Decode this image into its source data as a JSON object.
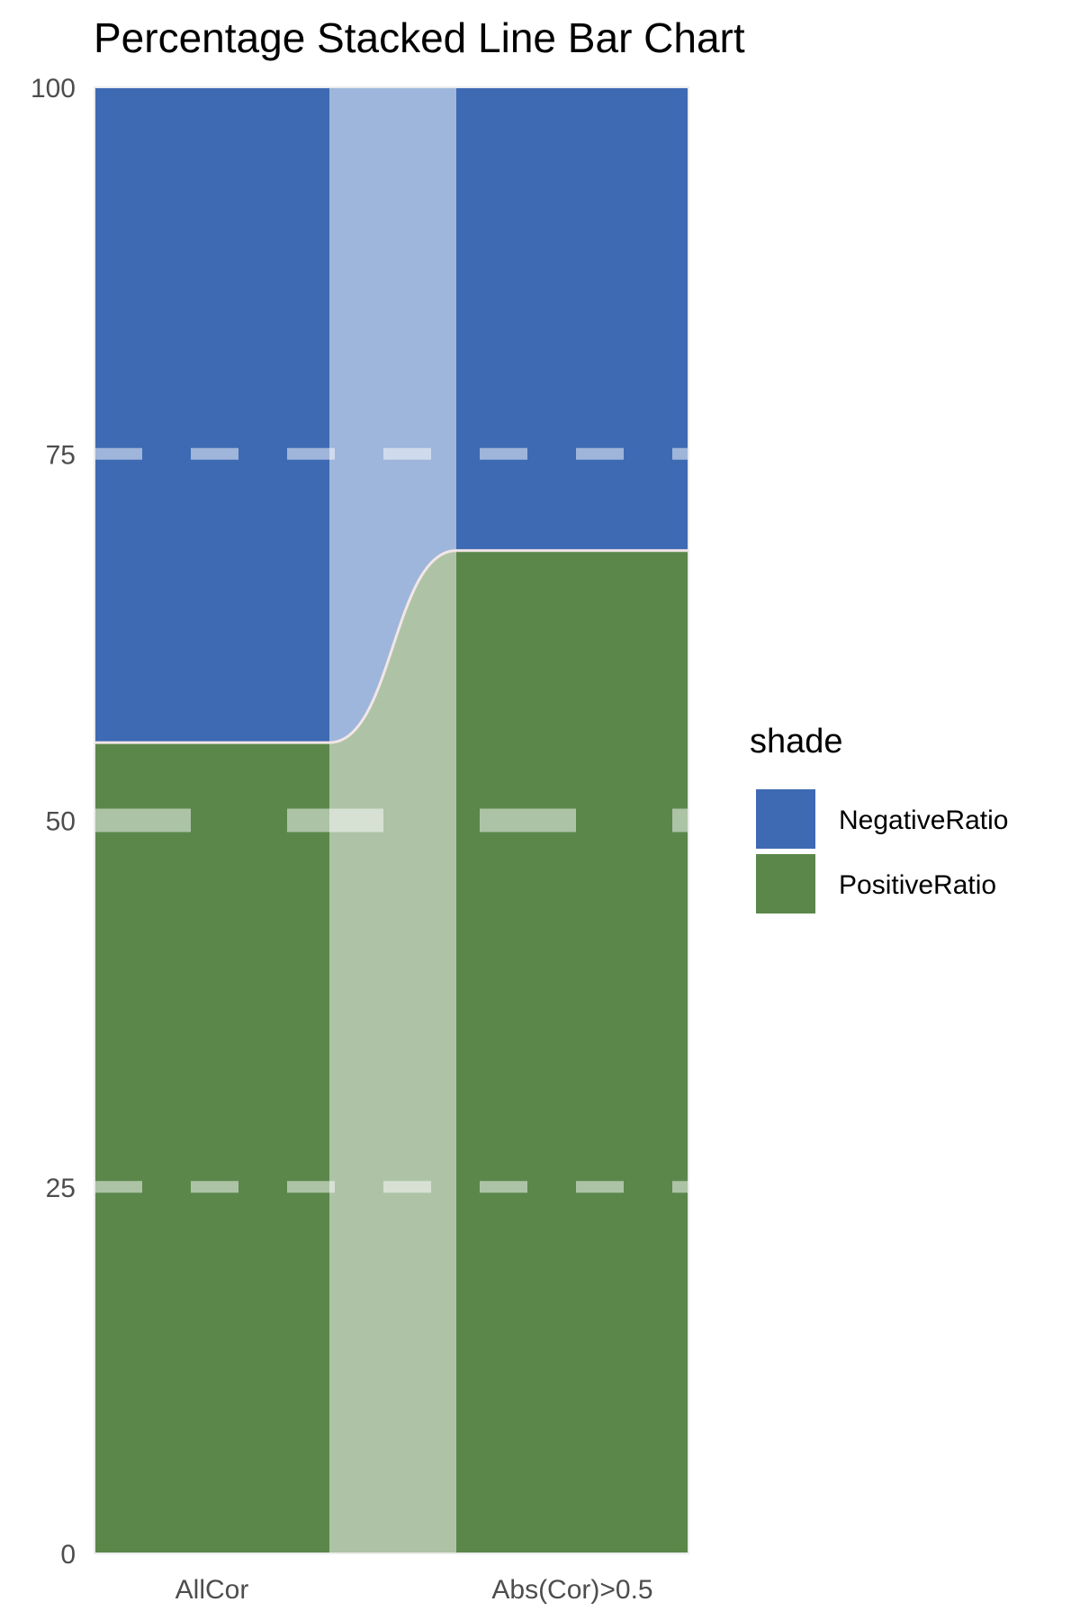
{
  "chart_data": {
    "type": "bar",
    "title": "Percentage Stacked Line Bar Chart",
    "xlabel": "",
    "ylabel": "",
    "categories": [
      "AllCor",
      "Abs(Cor)>0.5"
    ],
    "series": [
      {
        "name": "PositiveRatio",
        "values": [
          55.3,
          68.4
        ],
        "color": "#5b874b"
      },
      {
        "name": "NegativeRatio",
        "values": [
          44.7,
          31.6
        ],
        "color": "#3e6ab3"
      }
    ],
    "ylim": [
      0,
      100
    ],
    "yticks": [
      "0",
      "25",
      "50",
      "75",
      "100"
    ],
    "grid": true,
    "legend": {
      "title": "shade",
      "position": "right",
      "items": [
        "NegativeRatio",
        "PositiveRatio"
      ]
    }
  }
}
